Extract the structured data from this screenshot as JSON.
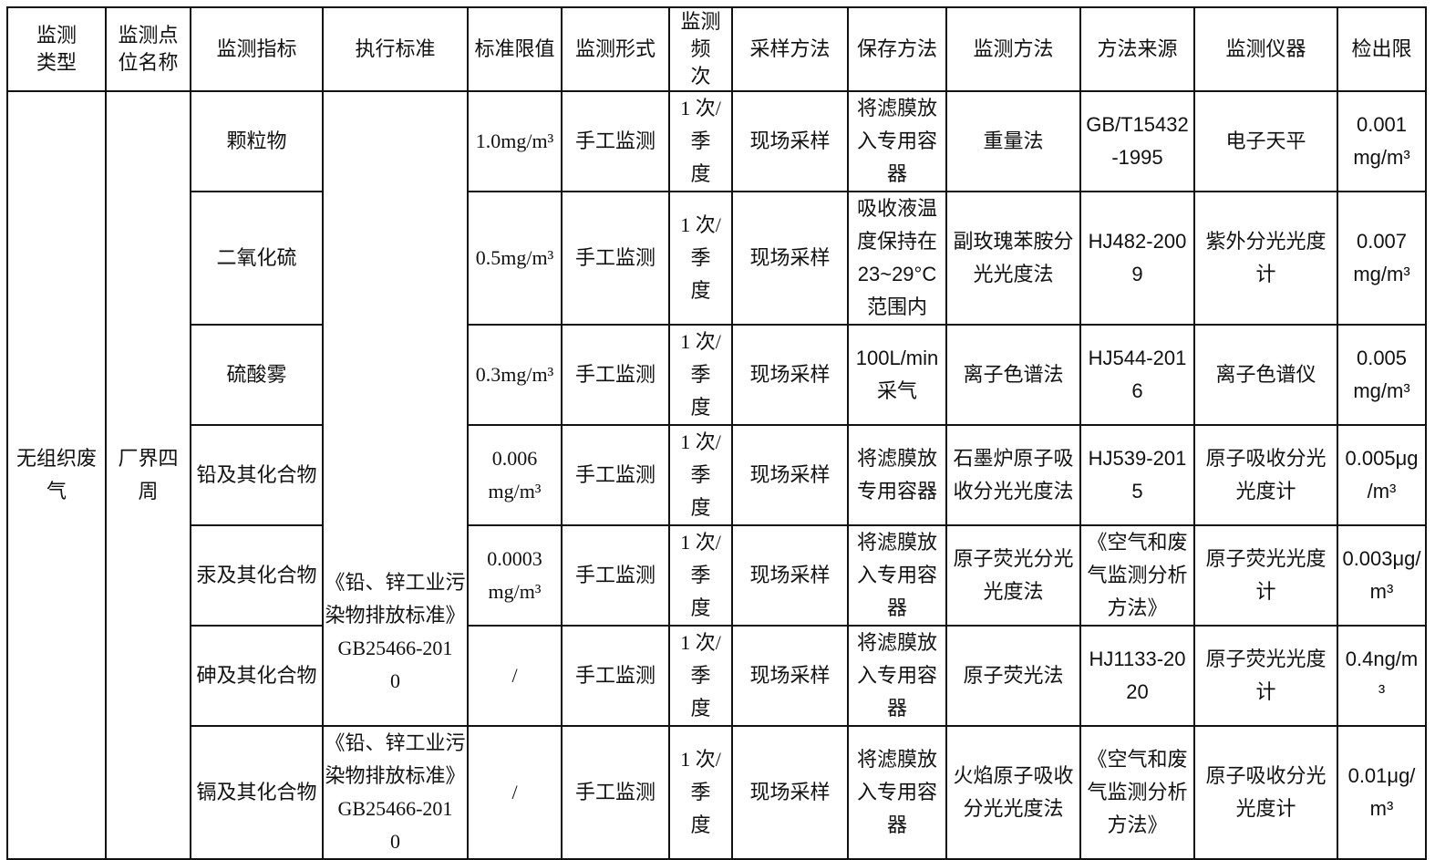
{
  "headers": [
    "监测\n类型",
    "监测点\n位名称",
    "监测指标",
    "执行标准",
    "标准限值",
    "监测形式",
    "监测频\n次",
    "采样方法",
    "保存方法",
    "监测方法",
    "方法来源",
    "监测仪器",
    "检出限"
  ],
  "type": "无组织废\n气",
  "site": "厂界四\n周",
  "standard_main": "《铅、锌工业污\n染物排放标准》\nGB25466-201\n0",
  "rows": [
    {
      "indicator": "颗粒物",
      "limit": "1.0mg/m³",
      "form": "手工监测",
      "freq": "1 次/季\n度",
      "sampling": "现场采样",
      "storage": "将滤膜放\n入专用容\n器",
      "method": "重量法",
      "source": "GB/T15432\n-1995",
      "instrument": "电子天平",
      "detection": "0.001\nmg/m³"
    },
    {
      "indicator": "二氧化硫",
      "limit": "0.5mg/m³",
      "form": "手工监测",
      "freq": "1 次/季\n度",
      "sampling": "现场采样",
      "storage": "吸收液温\n度保持在\n23~29°C\n范围内",
      "method": "副玫瑰苯胺分\n光光度法",
      "source": "HJ482-200\n9",
      "instrument": "紫外分光光度\n计",
      "detection": "0.007\nmg/m³"
    },
    {
      "indicator": "硫酸雾",
      "limit": "0.3mg/m³",
      "form": "手工监测",
      "freq": "1 次/季\n度",
      "sampling": "现场采样",
      "storage": "100L/min\n采气",
      "method": "离子色谱法",
      "source": "HJ544-201\n6",
      "instrument": "离子色谱仪",
      "detection": "0.005\nmg/m³"
    },
    {
      "indicator": "铅及其化合物",
      "limit": "0.006\nmg/m³",
      "form": "手工监测",
      "freq": "1 次/季\n度",
      "sampling": "现场采样",
      "storage": "将滤膜放\n专用容器",
      "method": "石墨炉原子吸\n收分光光度法",
      "source": "HJ539-201\n5",
      "instrument": "原子吸收分光\n光度计",
      "detection": "0.005μg\n/m³"
    },
    {
      "indicator": "汞及其化合物",
      "limit": "0.0003\nmg/m³",
      "form": "手工监测",
      "freq": "1 次/季\n度",
      "sampling": "现场采样",
      "storage": "将滤膜放\n入专用容\n器",
      "method": "原子荧光分光\n光度法",
      "source": "《空气和废\n气监测分析\n方法》",
      "instrument": "原子荧光光度\n计",
      "detection": "0.003μg/\nm³"
    },
    {
      "indicator": "砷及其化合物",
      "limit": "/",
      "form": "手工监测",
      "freq": "1 次/季\n度",
      "sampling": "现场采样",
      "storage": "将滤膜放\n入专用容\n器",
      "method": "原子荧光法",
      "source": "HJ1133-20\n20",
      "instrument": "原子荧光光度\n计",
      "detection": "0.4ng/m\n³"
    },
    {
      "indicator": "镉及其化合物",
      "standard": "《铅、锌工业污\n染物排放标准》\nGB25466-201\n0",
      "limit": "/",
      "form": "手工监测",
      "freq": "1 次/季\n度",
      "sampling": "现场采样",
      "storage": "将滤膜放\n入专用容\n器",
      "method": "火焰原子吸收\n分光光度法",
      "source": "《空气和废\n气监测分析\n方法》",
      "instrument": "原子吸收分光\n光度计",
      "detection": "0.01μg/\nm³"
    }
  ]
}
